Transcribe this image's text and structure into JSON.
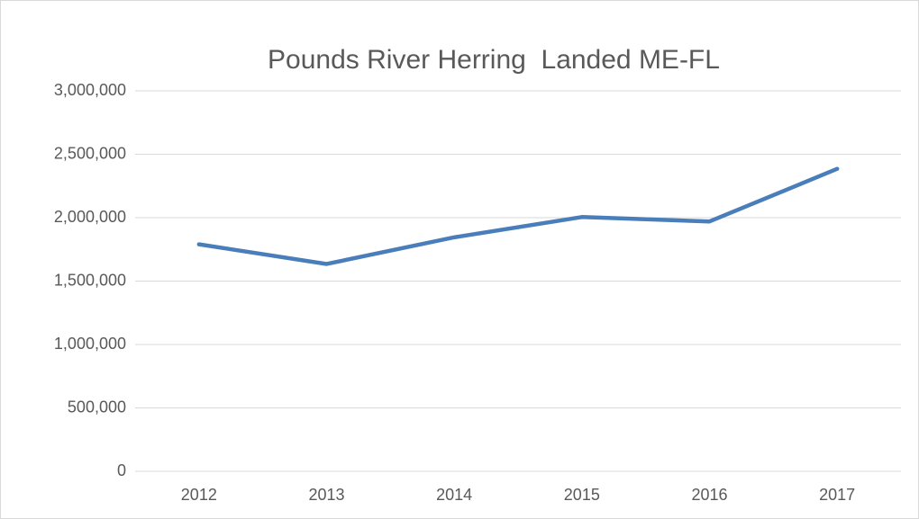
{
  "chart_data": {
    "type": "line",
    "title": "Pounds River Herring  Landed ME-FL",
    "categories": [
      "2012",
      "2013",
      "2014",
      "2015",
      "2016",
      "2017"
    ],
    "values": [
      1790000,
      1635000,
      1845000,
      2005000,
      1970000,
      2385000
    ],
    "color": "#4a7ebb",
    "ylim": [
      0,
      3000000
    ],
    "yticks": [
      0,
      {
        "value": 500000,
        "label": "500,000"
      },
      {
        "value": 1000000,
        "label": "1,000,000"
      },
      {
        "value": 1500000,
        "label": "1,500,000"
      },
      {
        "value": 2000000,
        "label": "2,000,000"
      },
      {
        "value": 2500000,
        "label": "2,500,000"
      },
      {
        "value": 3000000,
        "label": "3,000,000"
      }
    ],
    "grid": true
  }
}
